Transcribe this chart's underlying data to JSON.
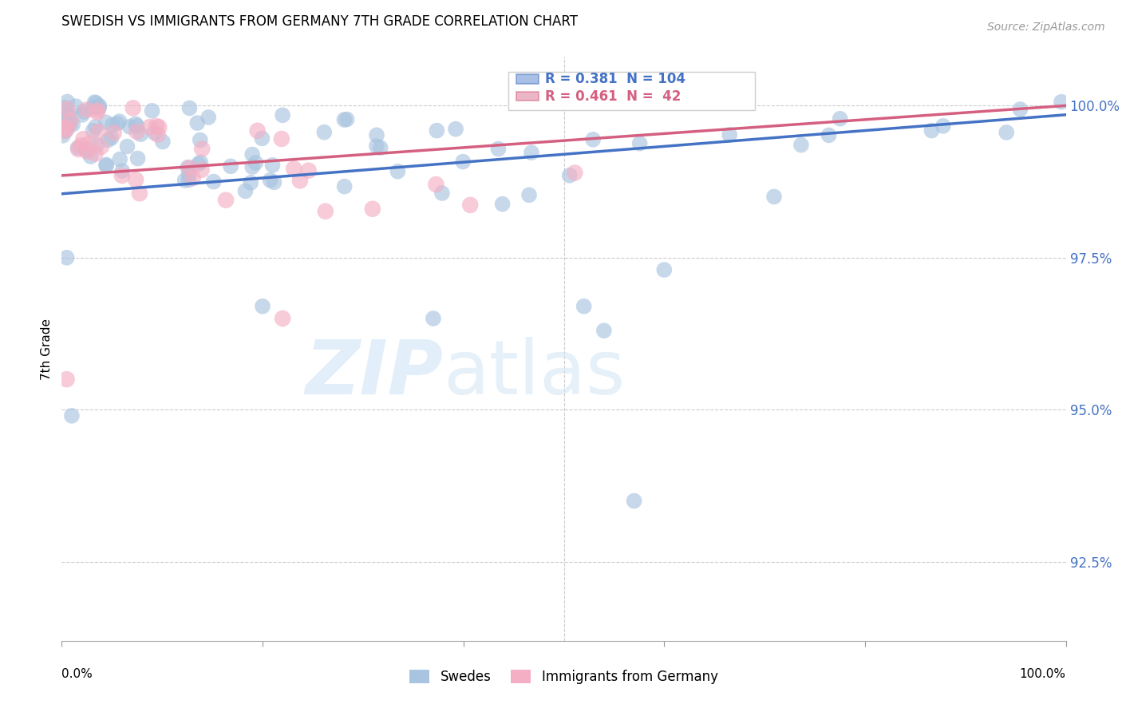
{
  "title": "SWEDISH VS IMMIGRANTS FROM GERMANY 7TH GRADE CORRELATION CHART",
  "source": "Source: ZipAtlas.com",
  "ylabel": "7th Grade",
  "yticks": [
    92.5,
    95.0,
    97.5,
    100.0
  ],
  "ytick_labels": [
    "92.5%",
    "95.0%",
    "97.5%",
    "100.0%"
  ],
  "xlim": [
    0.0,
    1.0
  ],
  "ylim": [
    91.2,
    100.8
  ],
  "legend_swedes": "Swedes",
  "legend_immigrants": "Immigrants from Germany",
  "swedes_color": "#a8c4e0",
  "immigrants_color": "#f4afc4",
  "swedes_line_color": "#4472c4",
  "immigrants_line_color": "#d45f80",
  "swedes_R": 0.381,
  "swedes_N": 104,
  "immigrants_R": 0.461,
  "immigrants_N": 42,
  "swedes_line_x0": 0.0,
  "swedes_line_x1": 1.0,
  "swedes_line_y0": 98.55,
  "swedes_line_y1": 99.85,
  "immigrants_line_x0": 0.0,
  "immigrants_line_x1": 1.0,
  "immigrants_line_y0": 98.85,
  "immigrants_line_y1": 100.0
}
